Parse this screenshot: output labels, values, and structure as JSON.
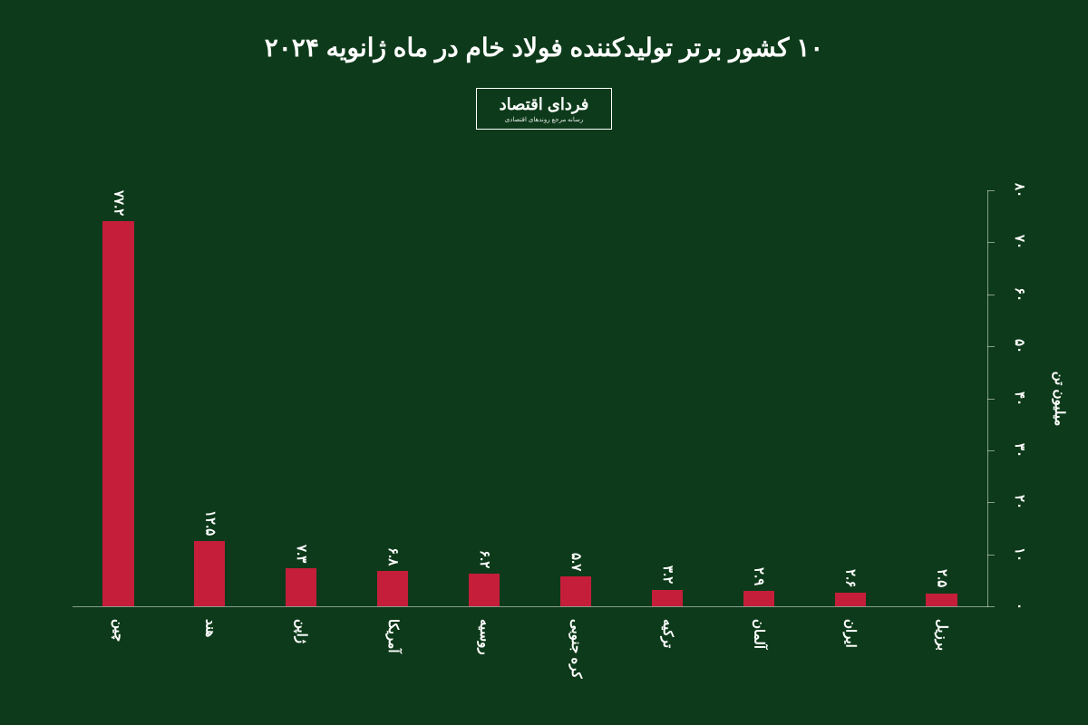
{
  "title": "۱۰ کشور برتر تولیدکننده فولاد خام در ماه ژانویه ۲۰۲۴",
  "title_fontsize": 28,
  "logo": {
    "main": "فردای اقتصاد",
    "main_fontsize": 18,
    "sub": "رسانه مرجع روندهای اقتصادی",
    "sub_fontsize": 7
  },
  "chart": {
    "type": "bar",
    "background_color": "#0d3a1a",
    "bar_color": "#c41e3a",
    "text_color": "#ffffff",
    "ylim": [
      0,
      80
    ],
    "ytick_step": 10,
    "yticks": [
      "۰",
      "۱۰",
      "۲۰",
      "۳۰",
      "۴۰",
      "۵۰",
      "۶۰",
      "۷۰",
      "۸۰"
    ],
    "yaxis_title": "میلیون تن",
    "label_fontsize": 15,
    "value_fontsize": 15,
    "tick_fontsize": 15,
    "bar_width_ratio": 0.34,
    "categories": [
      "چین",
      "هند",
      "ژاپن",
      "آمریکا",
      "روسیه",
      "کره جنوبی",
      "ترکیه",
      "آلمان",
      "ایران",
      "برزیل"
    ],
    "values": [
      77.2,
      12.5,
      7.3,
      6.8,
      6.2,
      5.7,
      3.2,
      2.9,
      2.6,
      2.5
    ],
    "value_labels": [
      "۷۷.۲",
      "۱۲.۵",
      "۷.۳",
      "۶.۸",
      "۶.۲",
      "۵.۷",
      "۳.۲",
      "۲.۹",
      "۲.۶",
      "۲.۵"
    ]
  }
}
